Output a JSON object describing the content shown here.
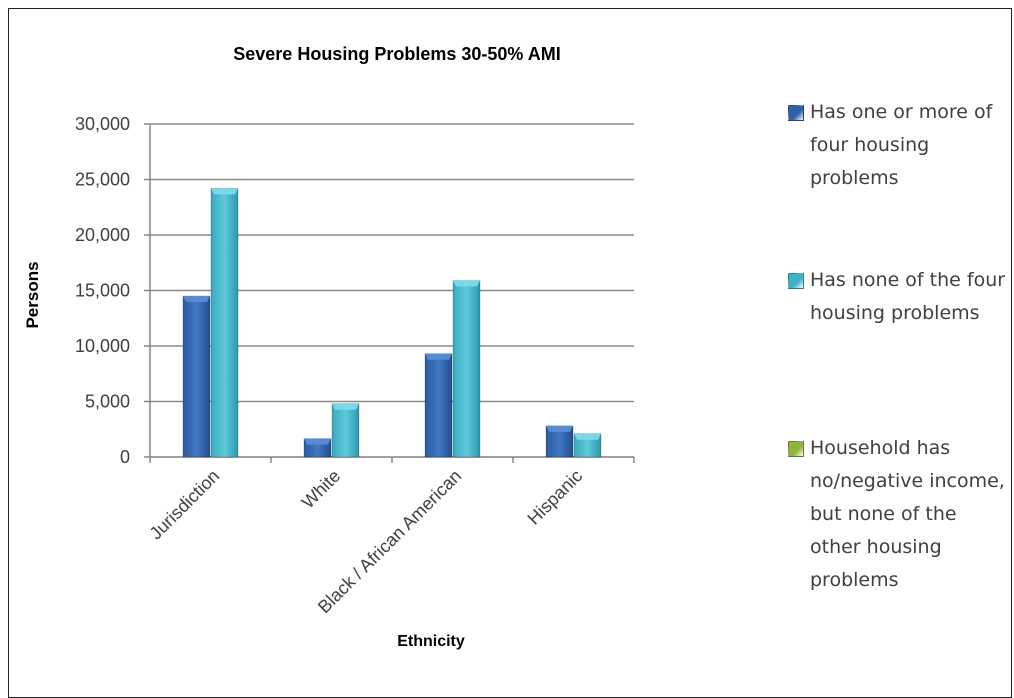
{
  "chart_data": {
    "type": "bar",
    "title": "Severe Housing Problems 30-50% AMI",
    "xlabel": "Ethnicity",
    "ylabel": "Persons",
    "categories": [
      "Jurisdiction",
      "White",
      "Black / African American",
      "Hispanic"
    ],
    "ylim": [
      0,
      30000
    ],
    "yticks": [
      0,
      5000,
      10000,
      15000,
      20000,
      25000,
      30000
    ],
    "ytick_labels": [
      "0",
      "5,000",
      "10,000",
      "15,000",
      "20,000",
      "25,000",
      "30,000"
    ],
    "grid": true,
    "legend_position": "right",
    "series": [
      {
        "name": "Has one or more of four housing problems",
        "color": "#2E63A8",
        "values": [
          14500,
          1650,
          9300,
          2800
        ]
      },
      {
        "name": "Has none of the four housing problems",
        "color": "#3BB3C8",
        "values": [
          24200,
          4800,
          15900,
          2100
        ]
      },
      {
        "name": "Household has no/negative income, but none of the other housing problems",
        "color": "#8DB43C",
        "values": [
          0,
          0,
          0,
          0
        ]
      }
    ]
  }
}
